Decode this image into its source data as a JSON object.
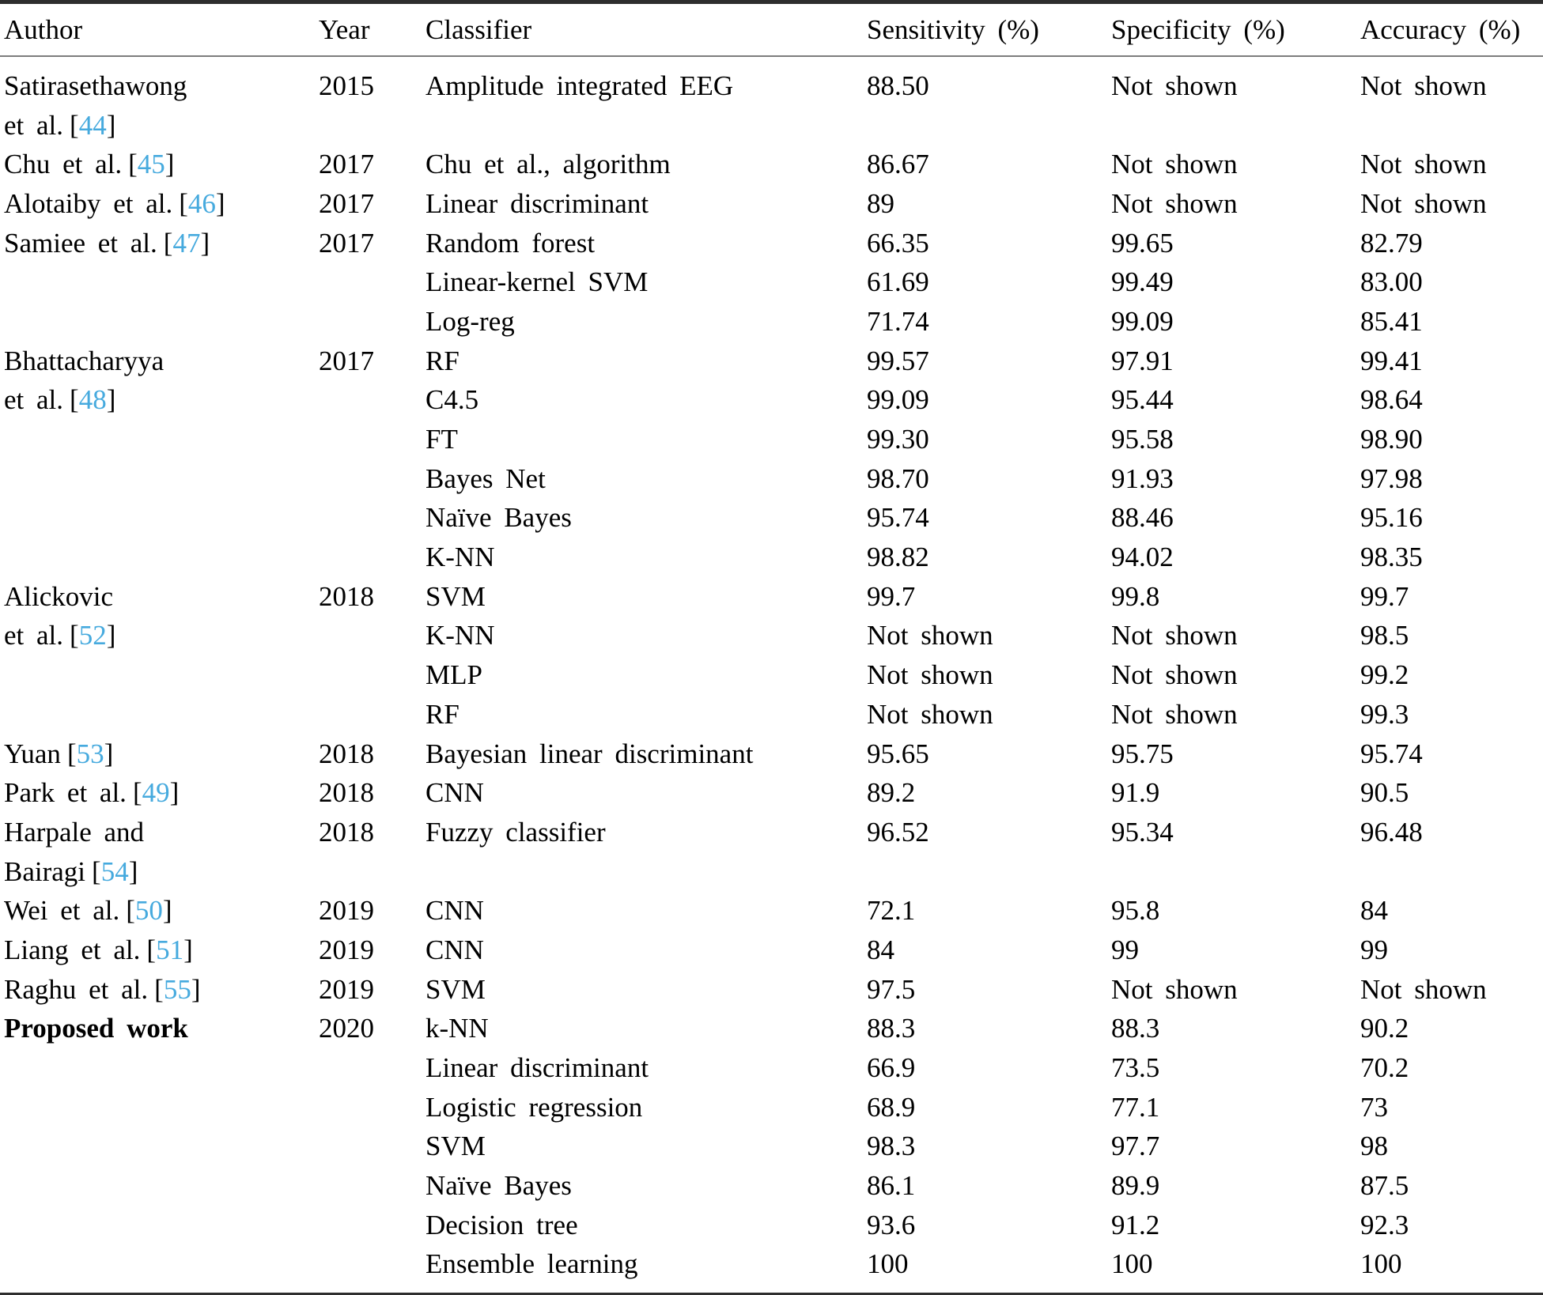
{
  "table": {
    "columns": [
      {
        "label": "Author"
      },
      {
        "label": "Year"
      },
      {
        "label": "Classifier"
      },
      {
        "label": "Sensitivity (%)"
      },
      {
        "label": "Specificity (%)"
      },
      {
        "label": "Accuracy (%)"
      }
    ],
    "rows": [
      {
        "author": "Satirasethawong",
        "ref": "",
        "bold": false,
        "year": "2015",
        "classifier": "Amplitude integrated EEG",
        "sensitivity": "88.50",
        "specificity": "Not shown",
        "accuracy": "Not shown"
      },
      {
        "author": "et al.",
        "ref": "44",
        "bold": false,
        "year": "",
        "classifier": "",
        "sensitivity": "",
        "specificity": "",
        "accuracy": ""
      },
      {
        "author": "Chu et al.",
        "ref": "45",
        "bold": false,
        "year": "2017",
        "classifier": "Chu et al., algorithm",
        "sensitivity": "86.67",
        "specificity": "Not shown",
        "accuracy": "Not shown"
      },
      {
        "author": "Alotaiby et al.",
        "ref": "46",
        "bold": false,
        "year": "2017",
        "classifier": "Linear discriminant",
        "sensitivity": "89",
        "specificity": "Not shown",
        "accuracy": "Not shown"
      },
      {
        "author": "Samiee et al.",
        "ref": "47",
        "bold": false,
        "year": "2017",
        "classifier": "Random forest",
        "sensitivity": "66.35",
        "specificity": "99.65",
        "accuracy": "82.79"
      },
      {
        "author": "",
        "ref": "",
        "bold": false,
        "year": "",
        "classifier": "Linear-kernel SVM",
        "sensitivity": "61.69",
        "specificity": "99.49",
        "accuracy": "83.00"
      },
      {
        "author": "",
        "ref": "",
        "bold": false,
        "year": "",
        "classifier": "Log-reg",
        "sensitivity": "71.74",
        "specificity": "99.09",
        "accuracy": "85.41"
      },
      {
        "author": "Bhattacharyya",
        "ref": "",
        "bold": false,
        "year": "2017",
        "classifier": "RF",
        "sensitivity": "99.57",
        "specificity": "97.91",
        "accuracy": "99.41"
      },
      {
        "author": "et al.",
        "ref": "48",
        "bold": false,
        "year": "",
        "classifier": "C4.5",
        "sensitivity": "99.09",
        "specificity": "95.44",
        "accuracy": "98.64"
      },
      {
        "author": "",
        "ref": "",
        "bold": false,
        "year": "",
        "classifier": "FT",
        "sensitivity": "99.30",
        "specificity": "95.58",
        "accuracy": "98.90"
      },
      {
        "author": "",
        "ref": "",
        "bold": false,
        "year": "",
        "classifier": "Bayes Net",
        "sensitivity": "98.70",
        "specificity": "91.93",
        "accuracy": "97.98"
      },
      {
        "author": "",
        "ref": "",
        "bold": false,
        "year": "",
        "classifier": "Naïve Bayes",
        "sensitivity": "95.74",
        "specificity": "88.46",
        "accuracy": "95.16"
      },
      {
        "author": "",
        "ref": "",
        "bold": false,
        "year": "",
        "classifier": "K-NN",
        "sensitivity": "98.82",
        "specificity": "94.02",
        "accuracy": "98.35"
      },
      {
        "author": "Alickovic",
        "ref": "",
        "bold": false,
        "year": "2018",
        "classifier": "SVM",
        "sensitivity": "99.7",
        "specificity": "99.8",
        "accuracy": "99.7"
      },
      {
        "author": "et al.",
        "ref": "52",
        "bold": false,
        "year": "",
        "classifier": "K-NN",
        "sensitivity": "Not shown",
        "specificity": "Not shown",
        "accuracy": "98.5"
      },
      {
        "author": "",
        "ref": "",
        "bold": false,
        "year": "",
        "classifier": "MLP",
        "sensitivity": "Not shown",
        "specificity": "Not shown",
        "accuracy": "99.2"
      },
      {
        "author": "",
        "ref": "",
        "bold": false,
        "year": "",
        "classifier": "RF",
        "sensitivity": "Not shown",
        "specificity": "Not shown",
        "accuracy": "99.3"
      },
      {
        "author": "Yuan",
        "ref": "53",
        "bold": false,
        "year": "2018",
        "classifier": "Bayesian linear discriminant",
        "sensitivity": "95.65",
        "specificity": "95.75",
        "accuracy": "95.74"
      },
      {
        "author": "Park et al.",
        "ref": "49",
        "bold": false,
        "year": "2018",
        "classifier": "CNN",
        "sensitivity": "89.2",
        "specificity": "91.9",
        "accuracy": "90.5"
      },
      {
        "author": "Harpale and",
        "ref": "",
        "bold": false,
        "year": "2018",
        "classifier": "Fuzzy classifier",
        "sensitivity": "96.52",
        "specificity": "95.34",
        "accuracy": "96.48"
      },
      {
        "author": "Bairagi",
        "ref": "54",
        "bold": false,
        "year": "",
        "classifier": "",
        "sensitivity": "",
        "specificity": "",
        "accuracy": ""
      },
      {
        "author": "Wei et al.",
        "ref": "50",
        "bold": false,
        "year": "2019",
        "classifier": "CNN",
        "sensitivity": "72.1",
        "specificity": "95.8",
        "accuracy": "84"
      },
      {
        "author": "Liang et al.",
        "ref": "51",
        "bold": false,
        "year": "2019",
        "classifier": "CNN",
        "sensitivity": "84",
        "specificity": "99",
        "accuracy": "99"
      },
      {
        "author": "Raghu et al.",
        "ref": "55",
        "bold": false,
        "year": "2019",
        "classifier": "SVM",
        "sensitivity": "97.5",
        "specificity": "Not shown",
        "accuracy": "Not shown"
      },
      {
        "author": "Proposed work",
        "ref": "",
        "bold": true,
        "year": "2020",
        "classifier": "k-NN",
        "sensitivity": "88.3",
        "specificity": "88.3",
        "accuracy": "90.2"
      },
      {
        "author": "",
        "ref": "",
        "bold": false,
        "year": "",
        "classifier": "Linear discriminant",
        "sensitivity": "66.9",
        "specificity": "73.5",
        "accuracy": "70.2"
      },
      {
        "author": "",
        "ref": "",
        "bold": false,
        "year": "",
        "classifier": "Logistic regression",
        "sensitivity": "68.9",
        "specificity": "77.1",
        "accuracy": "73"
      },
      {
        "author": "",
        "ref": "",
        "bold": false,
        "year": "",
        "classifier": "SVM",
        "sensitivity": "98.3",
        "specificity": "97.7",
        "accuracy": "98"
      },
      {
        "author": "",
        "ref": "",
        "bold": false,
        "year": "",
        "classifier": "Naïve Bayes",
        "sensitivity": "86.1",
        "specificity": "89.9",
        "accuracy": "87.5"
      },
      {
        "author": "",
        "ref": "",
        "bold": false,
        "year": "",
        "classifier": "Decision tree",
        "sensitivity": "93.6",
        "specificity": "91.2",
        "accuracy": "92.3"
      },
      {
        "author": "",
        "ref": "",
        "bold": false,
        "year": "",
        "classifier": "Ensemble learning",
        "sensitivity": "100",
        "specificity": "100",
        "accuracy": "100"
      }
    ]
  },
  "colors": {
    "citation_blue": "#46aade",
    "text_black": "#000000",
    "rule_dark": "#2e2e2e",
    "rule_gray": "#7d7d7d"
  }
}
